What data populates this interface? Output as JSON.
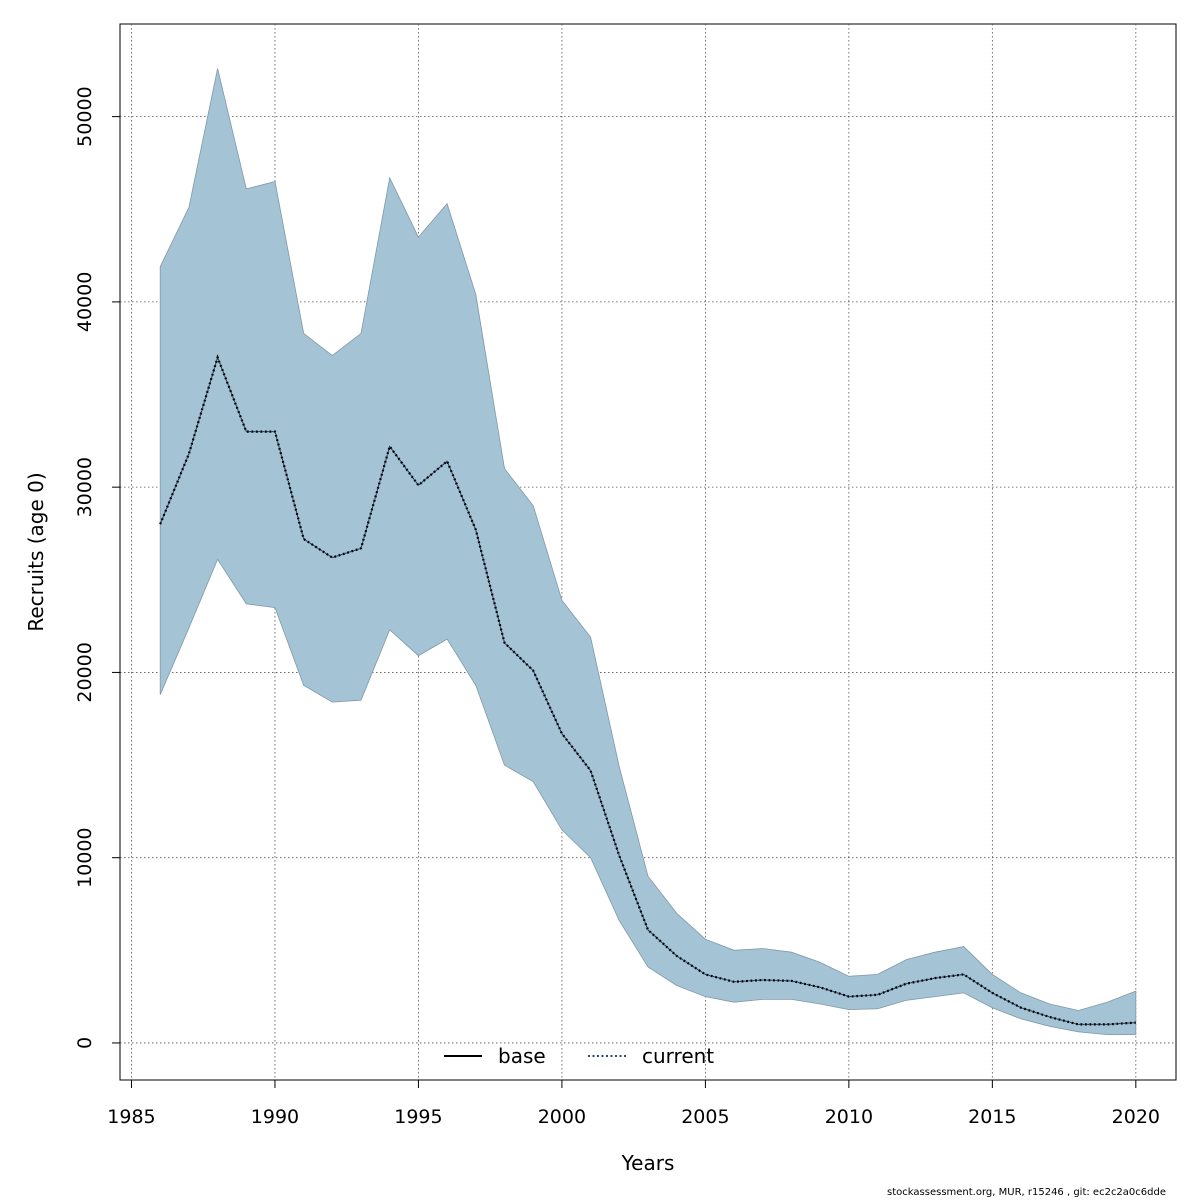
{
  "chart_data": {
    "type": "line",
    "title": "",
    "xlabel": "Years",
    "ylabel": "Recruits (age 0)",
    "xlim": [
      1984.6,
      2021.4
    ],
    "ylim": [
      -2000,
      55000
    ],
    "x_ticks": [
      1985,
      1990,
      1995,
      2000,
      2005,
      2010,
      2015,
      2020
    ],
    "y_ticks": [
      0,
      10000,
      20000,
      30000,
      40000,
      50000
    ],
    "grid": true,
    "legend_position": "bottom-center",
    "legend": [
      {
        "name": "base",
        "style": "solid",
        "color": "#000000"
      },
      {
        "name": "current",
        "style": "dotted",
        "color": "#1f4e79"
      }
    ],
    "x": [
      1986,
      1987,
      1988,
      1989,
      1990,
      1991,
      1992,
      1993,
      1994,
      1995,
      1996,
      1997,
      1998,
      1999,
      2000,
      2001,
      2002,
      2003,
      2004,
      2005,
      2006,
      2007,
      2008,
      2009,
      2010,
      2011,
      2012,
      2013,
      2014,
      2015,
      2016,
      2017,
      2018,
      2019,
      2020
    ],
    "series": [
      {
        "name": "current",
        "values": [
          28000,
          31800,
          37000,
          33000,
          33000,
          27200,
          26200,
          26700,
          32200,
          30100,
          31400,
          27700,
          21600,
          20100,
          16700,
          14700,
          10100,
          6100,
          4700,
          3700,
          3300,
          3400,
          3350,
          3000,
          2500,
          2600,
          3200,
          3500,
          3700,
          2700,
          1900,
          1400,
          1000,
          1000,
          1100
        ],
        "lower": [
          18800,
          22400,
          26100,
          23700,
          23500,
          19300,
          18400,
          18500,
          22300,
          20900,
          21800,
          19300,
          15000,
          14100,
          11500,
          10000,
          6600,
          4100,
          3100,
          2500,
          2200,
          2350,
          2350,
          2100,
          1800,
          1850,
          2300,
          2500,
          2700,
          1900,
          1300,
          900,
          600,
          450,
          450
        ],
        "upper": [
          41900,
          45100,
          52600,
          46100,
          46500,
          38300,
          37100,
          38300,
          46700,
          43500,
          45300,
          40400,
          31000,
          29000,
          23900,
          21900,
          14900,
          9000,
          7000,
          5600,
          5000,
          5100,
          4900,
          4350,
          3600,
          3700,
          4500,
          4900,
          5200,
          3700,
          2700,
          2100,
          1750,
          2200,
          2800
        ]
      }
    ],
    "colors": {
      "ci_fill": "#a4c3d5",
      "ci_stroke": "#7f9aa9",
      "current_line": "#1a3a5c",
      "grid": "#555555"
    }
  },
  "footer": "stockassessment.org, MUR, r15246 , git: ec2c2a0c6dde"
}
